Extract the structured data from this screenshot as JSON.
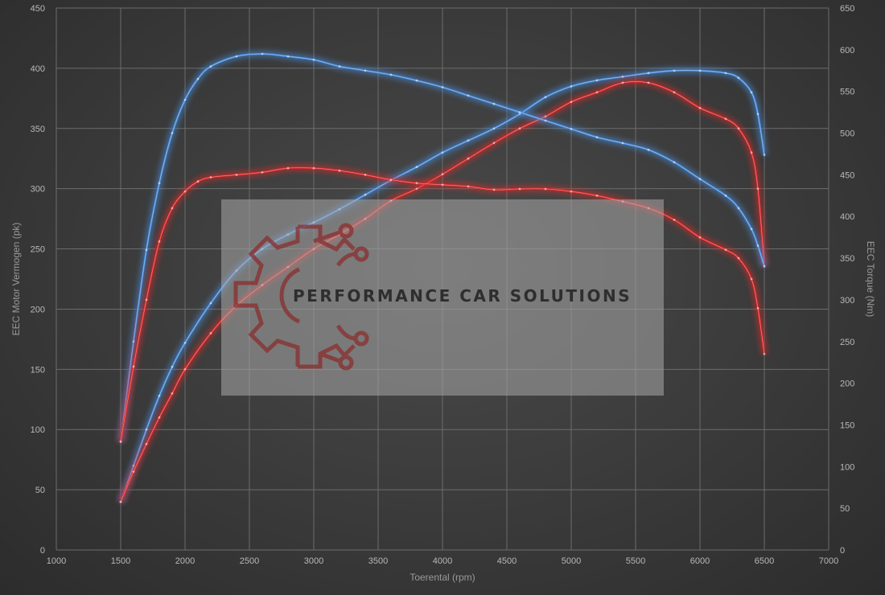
{
  "chart_data": {
    "type": "line",
    "xlabel": "Toerental (rpm)",
    "ylabel_left": "EEC Motor Vermogen (pk)",
    "ylabel_right": "EEC Torque (Nm)",
    "xlim": [
      1000,
      7000
    ],
    "x_ticks": [
      1000,
      1500,
      2000,
      2500,
      3000,
      3500,
      4000,
      4500,
      5000,
      5500,
      6000,
      6500,
      7000
    ],
    "ylim_left": [
      0,
      450
    ],
    "y_ticks_left": [
      0,
      50,
      100,
      150,
      200,
      250,
      300,
      350,
      400,
      450
    ],
    "ylim_right": [
      0,
      650
    ],
    "y_ticks_right": [
      0,
      50,
      100,
      150,
      200,
      250,
      300,
      350,
      400,
      450,
      500,
      550,
      600,
      650
    ],
    "grid": true,
    "series": [
      {
        "color": "#4a8fe0",
        "axis": "left",
        "kind": "power-tuned",
        "x": [
          1500,
          1600,
          1700,
          1800,
          1900,
          2000,
          2200,
          2400,
          2600,
          2800,
          3000,
          3200,
          3400,
          3600,
          3800,
          4000,
          4200,
          4400,
          4600,
          4800,
          5000,
          5200,
          5400,
          5600,
          5800,
          6000,
          6200,
          6300,
          6400,
          6450,
          6500
        ],
        "y": [
          40,
          70,
          100,
          128,
          152,
          172,
          205,
          232,
          250,
          262,
          272,
          283,
          295,
          307,
          318,
          330,
          340,
          350,
          362,
          376,
          385,
          390,
          393,
          396,
          398,
          398,
          396,
          392,
          380,
          362,
          328
        ]
      },
      {
        "color": "#e02a2a",
        "axis": "left",
        "kind": "power-stock",
        "x": [
          1500,
          1600,
          1700,
          1800,
          1900,
          2000,
          2200,
          2400,
          2600,
          2800,
          3000,
          3200,
          3400,
          3600,
          3800,
          4000,
          4200,
          4400,
          4600,
          4800,
          5000,
          5200,
          5400,
          5600,
          5800,
          6000,
          6200,
          6300,
          6400,
          6450,
          6500
        ],
        "y": [
          40,
          65,
          88,
          110,
          130,
          150,
          180,
          203,
          220,
          235,
          250,
          262,
          275,
          290,
          300,
          312,
          325,
          338,
          350,
          360,
          372,
          380,
          388,
          388,
          380,
          367,
          358,
          350,
          330,
          300,
          236
        ]
      },
      {
        "color": "#4a8fe0",
        "axis": "right",
        "kind": "torque-tuned",
        "x": [
          1500,
          1600,
          1700,
          1800,
          1900,
          2000,
          2100,
          2200,
          2400,
          2600,
          2800,
          3000,
          3200,
          3400,
          3600,
          3800,
          4000,
          4200,
          4400,
          4600,
          4800,
          5000,
          5200,
          5400,
          5600,
          5800,
          6000,
          6200,
          6300,
          6400,
          6450,
          6500
        ],
        "y": [
          130,
          250,
          360,
          440,
          500,
          540,
          565,
          580,
          592,
          595,
          592,
          588,
          580,
          575,
          570,
          563,
          555,
          545,
          535,
          525,
          515,
          505,
          495,
          488,
          480,
          465,
          445,
          425,
          410,
          385,
          365,
          340
        ]
      },
      {
        "color": "#e02a2a",
        "axis": "right",
        "kind": "torque-stock",
        "x": [
          1500,
          1600,
          1700,
          1800,
          1900,
          2000,
          2100,
          2200,
          2400,
          2600,
          2800,
          3000,
          3200,
          3400,
          3600,
          3800,
          4000,
          4200,
          4400,
          4600,
          4800,
          5000,
          5200,
          5400,
          5600,
          5800,
          6000,
          6200,
          6300,
          6400,
          6450,
          6500
        ],
        "y": [
          130,
          220,
          300,
          370,
          410,
          430,
          442,
          447,
          450,
          453,
          458,
          458,
          455,
          450,
          444,
          440,
          438,
          436,
          432,
          433,
          433,
          430,
          425,
          418,
          410,
          396,
          375,
          360,
          350,
          325,
          290,
          235
        ]
      }
    ]
  },
  "watermark": {
    "text": "PERFORMANCE CAR SOLUTIONS",
    "logo_icon": "gear-circuit-icon",
    "logo_color": "#8a2e2e"
  }
}
